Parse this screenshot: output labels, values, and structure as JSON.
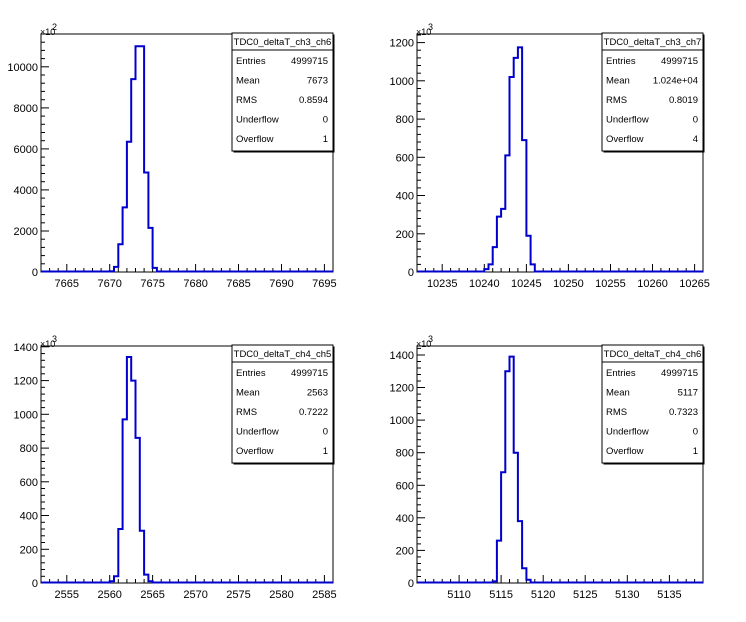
{
  "chart_data": [
    {
      "type": "histogram",
      "title": "TDC0_deltaT_ch3_ch6",
      "xlim": [
        7662,
        7696
      ],
      "x_ticks": [
        7665,
        7670,
        7675,
        7680,
        7685,
        7690,
        7695
      ],
      "x_tick_labels": [
        "7665",
        "7670",
        "7675",
        "7680",
        "7685",
        "7690",
        "7695"
      ],
      "ylim": [
        0,
        11600
      ],
      "y_ticks": [
        0,
        2000,
        4000,
        6000,
        8000,
        10000
      ],
      "y_tick_labels": [
        "0",
        "2000",
        "4000",
        "6000",
        "8000",
        "10000"
      ],
      "y_multiplier": "×10",
      "y_multiplier_exp": "2",
      "bins": {
        "start": 7670,
        "width": 0.5,
        "values": [
          40,
          250,
          1350,
          3150,
          6350,
          9400,
          11000,
          11000,
          4850,
          2150,
          200,
          20
        ]
      },
      "stats": [
        {
          "label": "Entries",
          "value": "4999715"
        },
        {
          "label": "Mean",
          "value": "7673"
        },
        {
          "label": "RMS",
          "value": "0.8594"
        },
        {
          "label": "Underflow",
          "value": "0"
        },
        {
          "label": "Overflow",
          "value": "1"
        }
      ],
      "line_color": "#0000cc"
    },
    {
      "type": "histogram",
      "title": "TDC0_deltaT_ch3_ch7",
      "xlim": [
        10232,
        10266
      ],
      "x_ticks": [
        10235,
        10240,
        10245,
        10250,
        10255,
        10260,
        10265
      ],
      "x_tick_labels": [
        "10235",
        "10240",
        "10245",
        "10250",
        "10255",
        "10260",
        "10265"
      ],
      "ylim": [
        0,
        1245
      ],
      "y_ticks": [
        0,
        200,
        400,
        600,
        800,
        1000,
        1200
      ],
      "y_tick_labels": [
        "0",
        "200",
        "400",
        "600",
        "800",
        "1000",
        "1200"
      ],
      "y_multiplier": "×10",
      "y_multiplier_exp": "3",
      "bins": {
        "start": 10240,
        "width": 0.5,
        "values": [
          15,
          40,
          130,
          290,
          330,
          610,
          1020,
          1120,
          1175,
          690,
          190,
          40
        ]
      },
      "stats": [
        {
          "label": "Entries",
          "value": "4999715"
        },
        {
          "label": "Mean",
          "value": "1.024e+04"
        },
        {
          "label": "RMS",
          "value": "0.8019"
        },
        {
          "label": "Underflow",
          "value": "0"
        },
        {
          "label": "Overflow",
          "value": "4"
        }
      ],
      "line_color": "#0000cc"
    },
    {
      "type": "histogram",
      "title": "TDC0_deltaT_ch4_ch5",
      "xlim": [
        2552,
        2586
      ],
      "x_ticks": [
        2555,
        2560,
        2565,
        2570,
        2575,
        2580,
        2585
      ],
      "x_tick_labels": [
        "2555",
        "2560",
        "2565",
        "2570",
        "2575",
        "2580",
        "2585"
      ],
      "ylim": [
        0,
        1405
      ],
      "y_ticks": [
        0,
        200,
        400,
        600,
        800,
        1000,
        1200,
        1400
      ],
      "y_tick_labels": [
        "0",
        "200",
        "400",
        "600",
        "800",
        "1000",
        "1200",
        "1400"
      ],
      "y_multiplier": "×10",
      "y_multiplier_exp": "3",
      "bins": {
        "start": 2560,
        "width": 0.5,
        "values": [
          10,
          40,
          320,
          970,
          1340,
          1200,
          860,
          310,
          50,
          10
        ]
      },
      "stats": [
        {
          "label": "Entries",
          "value": "4999715"
        },
        {
          "label": "Mean",
          "value": "2563"
        },
        {
          "label": "RMS",
          "value": "0.7222"
        },
        {
          "label": "Underflow",
          "value": "0"
        },
        {
          "label": "Overflow",
          "value": "1"
        }
      ],
      "line_color": "#0000cc"
    },
    {
      "type": "histogram",
      "title": "TDC0_deltaT_ch4_ch6",
      "xlim": [
        5105,
        5139
      ],
      "x_ticks": [
        5110,
        5115,
        5120,
        5125,
        5130,
        5135
      ],
      "x_tick_labels": [
        "5110",
        "5115",
        "5120",
        "5125",
        "5130",
        "5135"
      ],
      "ylim": [
        0,
        1455
      ],
      "y_ticks": [
        0,
        200,
        400,
        600,
        800,
        1000,
        1200,
        1400
      ],
      "y_tick_labels": [
        "0",
        "200",
        "400",
        "600",
        "800",
        "1000",
        "1200",
        "1400"
      ],
      "y_multiplier": "×10",
      "y_multiplier_exp": "3",
      "bins": {
        "start": 5114,
        "width": 0.5,
        "values": [
          10,
          260,
          680,
          1300,
          1390,
          800,
          380,
          90,
          20
        ]
      },
      "stats": [
        {
          "label": "Entries",
          "value": "4999715"
        },
        {
          "label": "Mean",
          "value": "5117"
        },
        {
          "label": "RMS",
          "value": "0.7323"
        },
        {
          "label": "Underflow",
          "value": "0"
        },
        {
          "label": "Overflow",
          "value": "1"
        }
      ],
      "line_color": "#0000cc"
    }
  ]
}
